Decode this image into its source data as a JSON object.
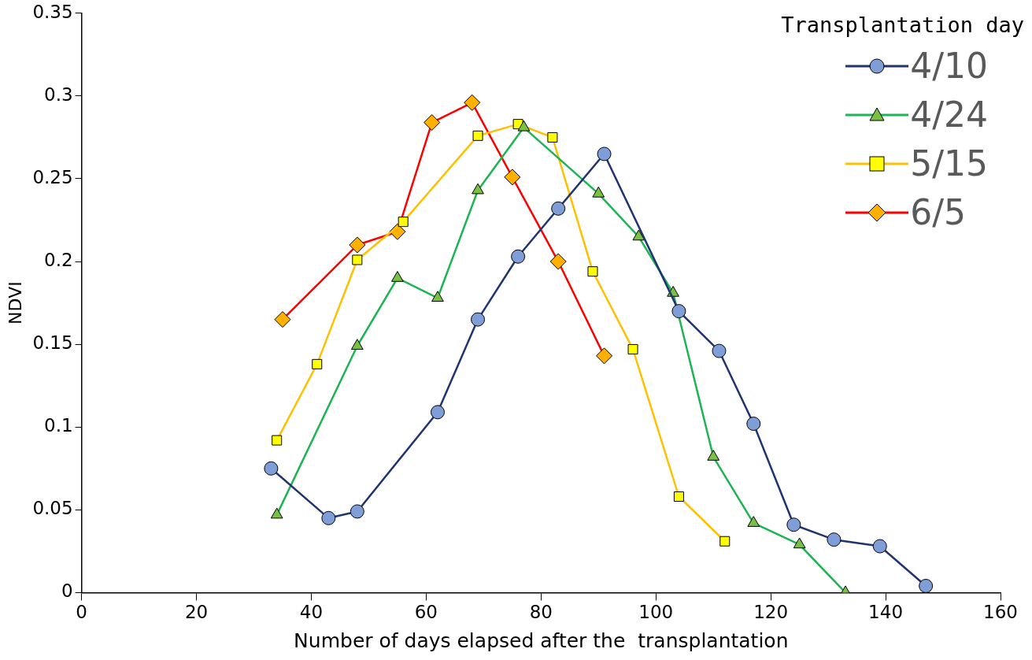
{
  "chart_data": {
    "type": "line",
    "xlabel": "Number of days elapsed after the  transplantation",
    "ylabel": "NDVI",
    "legend_title": "Transplantation day",
    "legend": "top right",
    "grid": false,
    "xlim": [
      0,
      160
    ],
    "xticks": [
      0,
      20,
      40,
      60,
      80,
      100,
      120,
      140,
      160
    ],
    "ylim": [
      0,
      0.35
    ],
    "yticks": [
      0,
      0.05,
      0.1,
      0.15,
      0.2,
      0.25,
      0.3,
      0.35
    ],
    "series": [
      {
        "name": "4/10",
        "color": "#1f3470",
        "colors": [
          "#7f9dd6",
          "#7f9dd6",
          "#7f9dd6",
          "#7f9dd6",
          "#7f9dd6",
          "#7f9dd6",
          "#7f9dd6",
          "#7f9dd6",
          "#7f9dd6",
          "#7f9dd6",
          "#7f9dd6",
          "#7f9dd6",
          "#7f9dd6",
          "#7f9dd6",
          "#7f9dd6"
        ],
        "marker": "circle",
        "x": [
          33,
          43,
          48,
          62,
          69,
          76,
          83,
          91,
          104,
          111,
          117,
          124,
          131,
          139,
          147
        ],
        "values": [
          0.075,
          0.045,
          0.049,
          0.109,
          0.165,
          0.203,
          0.232,
          0.265,
          0.17,
          0.146,
          0.102,
          0.041,
          0.032,
          0.028,
          0.004
        ]
      },
      {
        "name": "4/24",
        "color": "#1db454",
        "colors": [
          "#7ac143",
          "#7ac143",
          "#7ac143",
          "#7ac143",
          "#7ac143",
          "#7ac143",
          "#7ac143",
          "#7ac143",
          "#7ac143",
          "#7ac143",
          "#7ac143",
          "#7ac143",
          "#7ac143"
        ],
        "marker": "triangle",
        "x": [
          34,
          48,
          55,
          62,
          69,
          77,
          90,
          97,
          103,
          110,
          117,
          125,
          133
        ],
        "values": [
          0.047,
          0.149,
          0.19,
          0.178,
          0.243,
          0.281,
          0.241,
          0.215,
          0.181,
          0.082,
          0.042,
          0.029,
          0.0
        ]
      },
      {
        "name": "5/15",
        "color": "#ffc000",
        "colors": [
          "#ffff00",
          "#ffff00",
          "#ffff00",
          "#ffff00",
          "#ffff00",
          "#ffff00",
          "#ffff00",
          "#ffff00",
          "#ffff00",
          "#ffff00",
          "#ffff00"
        ],
        "marker": "square",
        "x": [
          34,
          41,
          48,
          56,
          69,
          76,
          82,
          89,
          96,
          104,
          112
        ],
        "values": [
          0.092,
          0.138,
          0.201,
          0.224,
          0.276,
          0.283,
          0.275,
          0.194,
          0.147,
          0.058,
          0.031
        ]
      },
      {
        "name": "6/5",
        "color": "#ff0000",
        "colors": [
          "#ffb000",
          "#ffb000",
          "#ffb000",
          "#ffb000",
          "#ffb000",
          "#ffb000",
          "#ffb000",
          "#ffb000"
        ],
        "marker": "diamond",
        "x": [
          35,
          48,
          55,
          61,
          68,
          75,
          83,
          91
        ],
        "values": [
          0.165,
          0.21,
          0.218,
          0.284,
          0.296,
          0.251,
          0.2,
          0.143
        ]
      }
    ]
  }
}
